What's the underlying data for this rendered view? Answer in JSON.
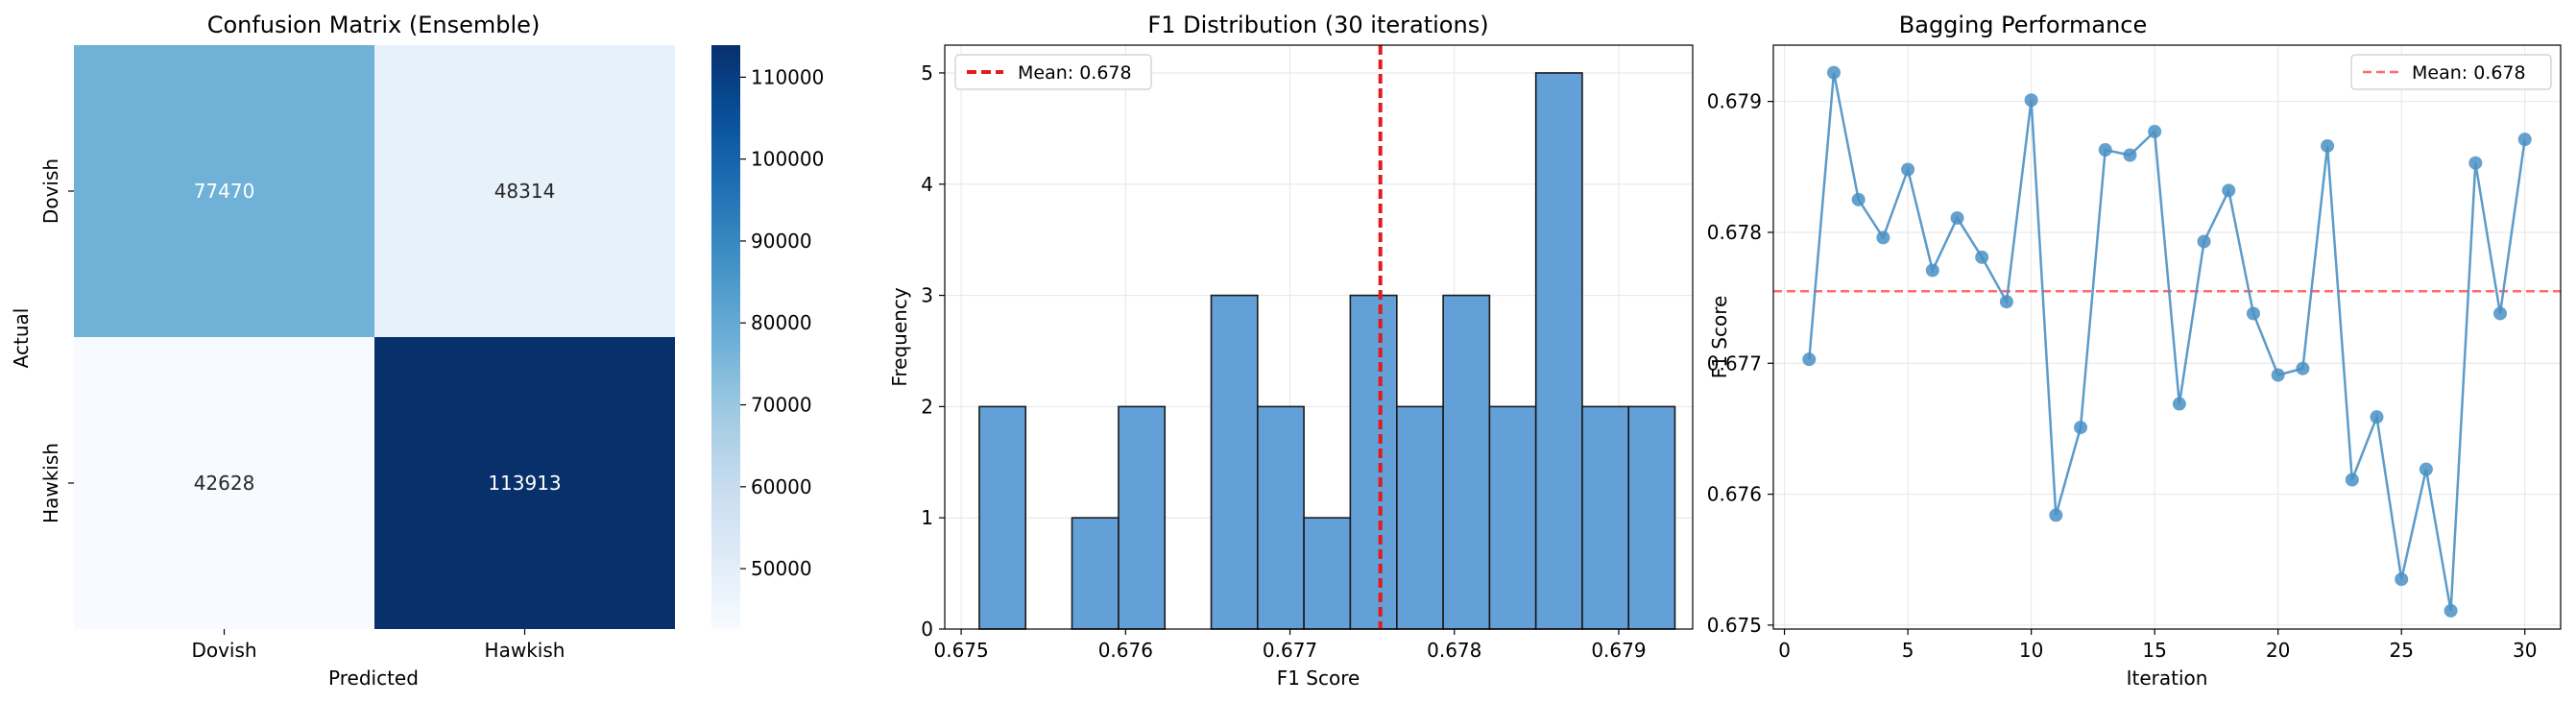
{
  "chart_data": [
    {
      "type": "heatmap",
      "title": "Confusion Matrix (Ensemble)",
      "xlabel": "Predicted",
      "ylabel": "Actual",
      "x_categories": [
        "Dovish",
        "Hawkish"
      ],
      "y_categories": [
        "Dovish",
        "Hawkish"
      ],
      "values": [
        [
          77470,
          48314
        ],
        [
          42628,
          113913
        ]
      ],
      "colormap": "Blues",
      "colorbar": {
        "min": 42628,
        "max": 113913,
        "ticks": [
          50000,
          60000,
          70000,
          80000,
          90000,
          100000,
          110000
        ]
      },
      "grid": false
    },
    {
      "type": "bar",
      "subtype": "histogram",
      "title": "F1 Distribution (30 iterations)",
      "xlabel": "F1 Score",
      "ylabel": "Frequency",
      "bin_edges": [
        0.67511,
        0.675392,
        0.675674,
        0.675957,
        0.676239,
        0.676521,
        0.676803,
        0.677085,
        0.677367,
        0.67765,
        0.677932,
        0.678214,
        0.678496,
        0.678778,
        0.67906,
        0.679342
      ],
      "counts": [
        2,
        0,
        1,
        2,
        0,
        3,
        2,
        1,
        3,
        2,
        3,
        2,
        5,
        2,
        2
      ],
      "xticks": [
        "0.675",
        "0.676",
        "0.677",
        "0.678",
        "0.679"
      ],
      "xlim": [
        0.6749,
        0.67945
      ],
      "ylim": [
        0,
        5.25
      ],
      "yticks": [
        "0",
        "1",
        "2",
        "3",
        "4",
        "5"
      ],
      "mean_line": {
        "value": 0.67755,
        "label": "Mean: 0.678",
        "color": "#e31a1c"
      },
      "bar_color": "#5b9bd5",
      "grid": true,
      "legend": "top-left"
    },
    {
      "type": "line",
      "title": "Bagging Performance",
      "xlabel": "Iteration",
      "ylabel": "F1 Score",
      "x": [
        1,
        2,
        3,
        4,
        5,
        6,
        7,
        8,
        9,
        10,
        11,
        12,
        13,
        14,
        15,
        16,
        17,
        18,
        19,
        20,
        21,
        22,
        23,
        24,
        25,
        26,
        27,
        28,
        29,
        30
      ],
      "y": [
        0.67703,
        0.67922,
        0.67825,
        0.67796,
        0.67848,
        0.67771,
        0.67811,
        0.67781,
        0.67747,
        0.67901,
        0.67584,
        0.67651,
        0.67863,
        0.67859,
        0.67877,
        0.67669,
        0.67793,
        0.67832,
        0.67738,
        0.67691,
        0.67696,
        0.67866,
        0.67611,
        0.67659,
        0.67535,
        0.67619,
        0.67511,
        0.67853,
        0.67738,
        0.67871
      ],
      "xlim": [
        -0.45,
        31.45
      ],
      "ylim": [
        0.67497,
        0.67943
      ],
      "xticks": [
        "0",
        "5",
        "10",
        "15",
        "20",
        "25",
        "30"
      ],
      "yticks": [
        "0.675",
        "0.676",
        "0.677",
        "0.678",
        "0.679"
      ],
      "mean_line": {
        "value": 0.67755,
        "label": "Mean: 0.678",
        "color": "#ff6b6b"
      },
      "line_color": "#4a90c4",
      "grid": true,
      "legend": "top-right"
    }
  ]
}
